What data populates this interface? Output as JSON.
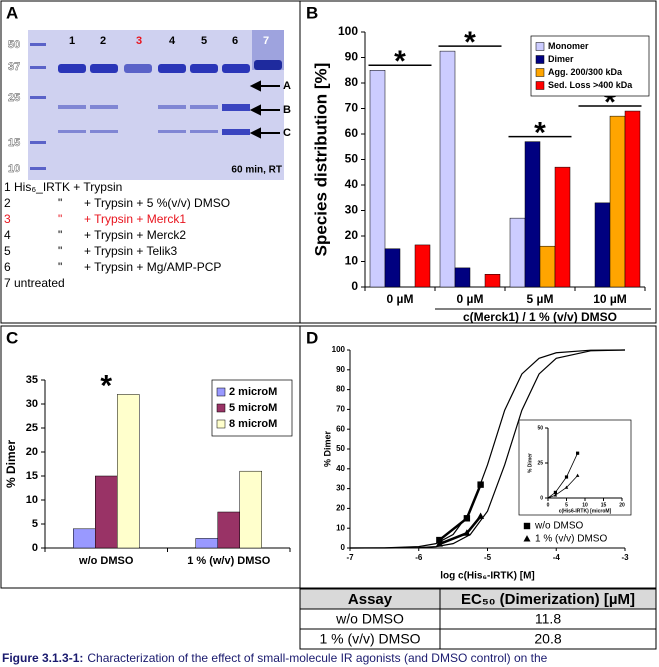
{
  "panel_a": {
    "label": "A",
    "lanes": [
      {
        "label": "1"
      },
      {
        "label": "2"
      },
      {
        "label": "3",
        "color": "#e8141e"
      },
      {
        "label": "4"
      },
      {
        "label": "5"
      },
      {
        "label": "6"
      },
      {
        "label": "7"
      }
    ],
    "markers": [
      "50",
      "37",
      "25",
      "15",
      "10"
    ],
    "arrows": [
      "A",
      "B",
      "C"
    ],
    "condition": "60 min, RT",
    "legend": [
      {
        "number": "1",
        "text": "His₆_IRTK + Trypsin"
      },
      {
        "number": "2",
        "ditto": "\"",
        "text": "+ Trypsin + 5 %(v/v) DMSO"
      },
      {
        "number": "3",
        "ditto": "\"",
        "text": "+ Trypsin + Merck1",
        "color": "#e8141e"
      },
      {
        "number": "4",
        "ditto": "\"",
        "text": "+ Trypsin + Merck2"
      },
      {
        "number": "5",
        "ditto": "\"",
        "text": "+ Trypsin + Telik3"
      },
      {
        "number": "6",
        "ditto": "\"",
        "text": "+ Trypsin + Mg/AMP-PCP"
      },
      {
        "number": "7",
        "text": "untreated"
      }
    ]
  },
  "chart_data": [
    {
      "label": "B",
      "type": "bar",
      "categories": [
        "0 µM",
        "0 µM",
        "5 µM",
        "10 µM"
      ],
      "series": [
        {
          "name": "Monomer",
          "color": "#ccccff",
          "values": [
            85,
            92.5,
            27,
            null
          ]
        },
        {
          "name": "Dimer",
          "color": "#000080",
          "values": [
            15,
            7.5,
            57,
            33
          ]
        },
        {
          "name": "Agg. 200/300 kDa",
          "color": "#ffa500",
          "values": [
            null,
            null,
            16,
            67
          ]
        },
        {
          "name": "Sed. Loss >400 kDa",
          "color": "#ff0000",
          "values": [
            16.5,
            5,
            47,
            69
          ]
        }
      ],
      "ylim": [
        0,
        100
      ],
      "yticks": [
        0,
        10,
        20,
        30,
        40,
        50,
        60,
        70,
        80,
        90,
        100
      ],
      "y_label": "Species distribution [%]",
      "x_label": "c(Merck1) / 1 % (v/v) DMSO",
      "annotations": [
        "*",
        "*",
        "*",
        "*"
      ],
      "legend": "top-right"
    },
    {
      "label": "C",
      "type": "bar",
      "categories": [
        "w/o DMSO",
        "1 % (w/v) DMSO"
      ],
      "series": [
        {
          "name": "2 microM",
          "color": "#9999ff",
          "values": [
            4,
            2
          ]
        },
        {
          "name": "5 microM",
          "color": "#993366",
          "values": [
            15,
            7.5
          ]
        },
        {
          "name": "8 microM",
          "color": "#ffffcc",
          "values": [
            32,
            16
          ]
        }
      ],
      "ylim": [
        0,
        35
      ],
      "yticks": [
        0,
        5,
        10,
        15,
        20,
        25,
        30,
        35
      ],
      "y_label": "% Dimer",
      "annotations": [
        "*"
      ],
      "legend": "top-right"
    },
    {
      "label": "D",
      "type": "scatter",
      "xlim": [
        -7,
        -3
      ],
      "xticks": [
        -7,
        -6,
        -5,
        -4,
        -3
      ],
      "ylim": [
        0,
        100
      ],
      "yticks": [
        0,
        10,
        20,
        30,
        40,
        50,
        60,
        70,
        80,
        90,
        100
      ],
      "x_label": "log c(His₆-IRTK) [M]",
      "y_label": "% Dimer",
      "series": [
        {
          "name": "w/o DMSO",
          "marker": "square",
          "color": "#000000",
          "x": [
            -5.7,
            -5.3,
            -5.1
          ],
          "values": [
            4,
            15,
            32
          ]
        },
        {
          "name": "1 % (v/v) DMSO",
          "marker": "triangle",
          "color": "#000000",
          "x": [
            -5.7,
            -5.3,
            -5.1
          ],
          "values": [
            2,
            7.5,
            16
          ]
        }
      ],
      "fits": [
        {
          "color": "#000000",
          "x": [
            -7,
            -6.5,
            -6,
            -5.75,
            -5.5,
            -5.25,
            -5,
            -4.75,
            -4.5,
            -4.25,
            -4,
            -3.5,
            -3
          ],
          "values": [
            0,
            0.1,
            0.7,
            2.2,
            6.8,
            18.6,
            42,
            69.6,
            87.9,
            95.8,
            98.6,
            99.9,
            100
          ]
        },
        {
          "color": "#000000",
          "x": [
            -7,
            -6.5,
            -6,
            -5.75,
            -5.5,
            -5.25,
            -5,
            -4.75,
            -4.5,
            -4.25,
            -4,
            -3.5,
            -3
          ],
          "values": [
            0,
            0,
            0.2,
            0.7,
            2.2,
            6.8,
            18.6,
            42,
            69.6,
            87.9,
            95.8,
            99.6,
            100
          ]
        }
      ],
      "inset": {
        "xlim": [
          0,
          20
        ],
        "xticks": [
          0,
          5,
          10,
          15,
          20
        ],
        "ylim": [
          0,
          50
        ],
        "yticks": [
          0,
          25,
          50
        ],
        "x_label": "c(His6-IRTK) [microM]",
        "y_label": "% Dimer",
        "series": [
          {
            "marker": "square",
            "x": [
              2,
              5,
              8
            ],
            "values": [
              4,
              15,
              32
            ]
          },
          {
            "marker": "triangle",
            "x": [
              2,
              5,
              8
            ],
            "values": [
              2,
              7.5,
              16
            ]
          }
        ]
      },
      "legend": "bottom-right"
    }
  ],
  "table": {
    "header": [
      "Assay",
      "EC₅₀ (Dimerization) [µM]"
    ],
    "rows": [
      [
        "w/o DMSO",
        "11.8"
      ],
      [
        "1 % (v/v) DMSO",
        "20.8"
      ]
    ]
  },
  "caption": {
    "label": "Figure 3.1.3-1:",
    "text": "Characterization of the effect of small-molecule IR agonists (and DMSO control) on the"
  }
}
